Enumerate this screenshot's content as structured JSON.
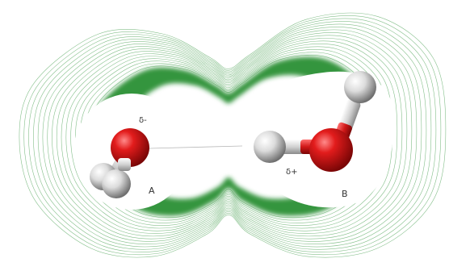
{
  "labels": {
    "molecule_a": "A",
    "molecule_b": "B",
    "partial_negative": "δ-",
    "partial_positive": "δ+"
  },
  "colors": {
    "contour": "#1f8a2a",
    "oxygen": "#c81414",
    "hydrogen": "#e8e8e8",
    "bond": "#d8d8d8",
    "background": "#ffffff"
  }
}
